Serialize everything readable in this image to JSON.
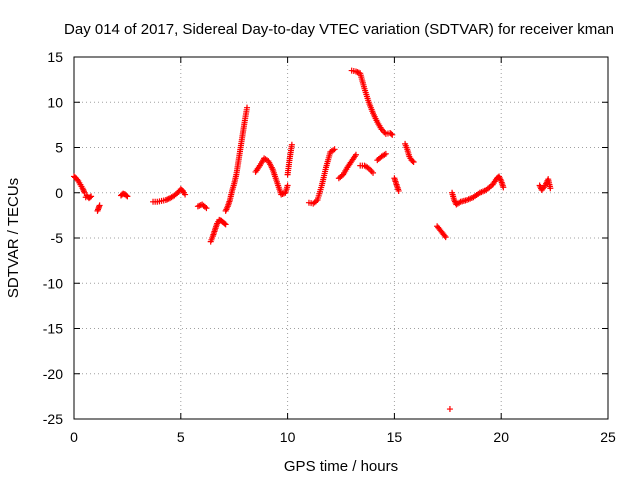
{
  "chart_data": {
    "type": "scatter",
    "title": "Day 014 of 2017, Sidereal Day-to-day VTEC variation (SDTVAR) for receiver kman",
    "xlabel": "GPS time / hours",
    "ylabel": "SDTVAR / TECUs",
    "xlim": [
      0,
      25
    ],
    "ylim": [
      -25,
      15
    ],
    "xticks": [
      0,
      5,
      10,
      15,
      20,
      25
    ],
    "yticks": [
      15,
      10,
      5,
      0,
      -5,
      -10,
      -15,
      -20,
      -25
    ],
    "xtick_labels": [
      "0",
      "5",
      "10",
      "15",
      "20",
      "25"
    ],
    "ytick_labels": [
      "15",
      "10",
      "5",
      "0",
      "-5",
      "-10",
      "-15",
      "-20",
      "-25"
    ],
    "grid": true,
    "marker": "+",
    "color": "#ff0000",
    "segments": [
      {
        "x": [
          0.0,
          0.1,
          0.2,
          0.3,
          0.4,
          0.5
        ],
        "y": [
          1.8,
          1.6,
          1.3,
          0.9,
          0.5,
          0.0
        ]
      },
      {
        "x": [
          0.55,
          0.6,
          0.7,
          0.8
        ],
        "y": [
          -0.5,
          -0.3,
          -0.6,
          -0.4
        ]
      },
      {
        "x": [
          1.1,
          1.15,
          1.2
        ],
        "y": [
          -2.0,
          -1.7,
          -1.4
        ]
      },
      {
        "x": [
          2.2,
          2.3,
          2.4,
          2.5
        ],
        "y": [
          -0.3,
          -0.1,
          -0.2,
          -0.4
        ]
      },
      {
        "x": [
          3.7,
          3.9,
          4.1,
          4.3,
          4.5,
          4.7,
          4.9,
          5.0,
          5.1,
          5.2
        ],
        "y": [
          -1.0,
          -1.0,
          -0.9,
          -0.8,
          -0.6,
          -0.3,
          0.1,
          0.4,
          0.2,
          -0.2
        ]
      },
      {
        "x": [
          5.8,
          6.0,
          6.2
        ],
        "y": [
          -1.5,
          -1.3,
          -1.7
        ]
      },
      {
        "x": [
          6.4,
          6.5,
          6.6,
          6.7,
          6.8,
          6.9,
          7.0,
          7.1
        ],
        "y": [
          -5.4,
          -4.8,
          -4.1,
          -3.4,
          -3.0,
          -3.1,
          -3.3,
          -3.5
        ]
      },
      {
        "x": [
          7.1,
          7.2,
          7.3,
          7.4,
          7.5,
          7.6,
          7.7,
          7.8,
          7.9,
          8.0,
          8.1
        ],
        "y": [
          -2.0,
          -1.5,
          -0.8,
          0.2,
          1.0,
          2.0,
          3.5,
          5.0,
          6.5,
          8.0,
          9.4
        ]
      },
      {
        "x": [
          8.5,
          8.7,
          8.9,
          9.1,
          9.3,
          9.5,
          9.7,
          9.9,
          10.0
        ],
        "y": [
          2.3,
          3.0,
          3.8,
          3.5,
          2.6,
          1.2,
          -0.2,
          0.0,
          0.8
        ]
      },
      {
        "x": [
          10.0,
          10.1,
          10.2
        ],
        "y": [
          2.0,
          3.8,
          5.3
        ]
      },
      {
        "x": [
          11.0,
          11.2,
          11.4,
          11.6,
          11.8,
          12.0,
          12.2
        ],
        "y": [
          -1.1,
          -1.2,
          -0.8,
          0.8,
          2.8,
          4.5,
          4.8
        ]
      },
      {
        "x": [
          12.4,
          12.6,
          12.8,
          13.0,
          13.2
        ],
        "y": [
          1.6,
          2.0,
          2.8,
          3.5,
          4.2
        ]
      },
      {
        "x": [
          13.0,
          13.2,
          13.4,
          13.6,
          13.8,
          14.0,
          14.2,
          14.4,
          14.6,
          14.8,
          14.9
        ],
        "y": [
          13.5,
          13.4,
          13.2,
          11.5,
          10.0,
          8.8,
          7.8,
          7.0,
          6.5,
          6.6,
          6.4
        ]
      },
      {
        "x": [
          13.4,
          13.6,
          13.8,
          14.0
        ],
        "y": [
          3.0,
          3.0,
          2.7,
          2.2
        ]
      },
      {
        "x": [
          14.2,
          14.4,
          14.6
        ],
        "y": [
          3.6,
          4.0,
          4.3
        ]
      },
      {
        "x": [
          15.0,
          15.1,
          15.2
        ],
        "y": [
          1.6,
          0.9,
          0.2
        ]
      },
      {
        "x": [
          15.5,
          15.6,
          15.7,
          15.8,
          15.9
        ],
        "y": [
          5.4,
          4.8,
          4.0,
          3.6,
          3.4
        ]
      },
      {
        "x": [
          17.0,
          17.1,
          17.2,
          17.3,
          17.4
        ],
        "y": [
          -3.7,
          -4.0,
          -4.3,
          -4.6,
          -4.9
        ]
      },
      {
        "x": [
          17.6
        ],
        "y": [
          -23.9
        ]
      },
      {
        "x": [
          17.7,
          17.8,
          17.9,
          18.1,
          18.4,
          18.7,
          19.0,
          19.3,
          19.6,
          19.8,
          19.9,
          20.0,
          20.1
        ],
        "y": [
          0.0,
          -0.8,
          -1.3,
          -1.0,
          -0.8,
          -0.5,
          0.0,
          0.3,
          0.9,
          1.6,
          1.8,
          1.3,
          0.6
        ]
      },
      {
        "x": [
          21.8,
          21.9,
          22.0,
          22.1,
          22.2,
          22.3
        ],
        "y": [
          0.8,
          0.3,
          0.6,
          1.0,
          1.5,
          0.5
        ]
      }
    ]
  }
}
